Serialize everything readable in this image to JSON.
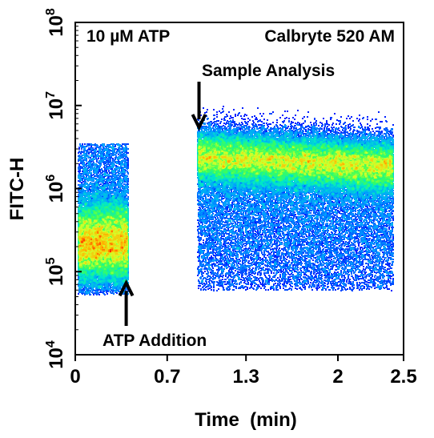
{
  "chart_data": {
    "type": "heatmap",
    "subtype": "density scatter (flow cytometry kinetic plot)",
    "title": "",
    "xlabel": "Time  (min)",
    "ylabel": "FITC-H",
    "x_ticks": [
      {
        "value": 0,
        "label": "0"
      },
      {
        "value": 0.7,
        "label": "0.7"
      },
      {
        "value": 1.3,
        "label": "1.3"
      },
      {
        "value": 2,
        "label": "2"
      },
      {
        "value": 2.5,
        "label": "2.5"
      }
    ],
    "y_scale": "log",
    "y_ticks": [
      {
        "value": 10000,
        "base": "10",
        "exp": "4"
      },
      {
        "value": 100000,
        "base": "10",
        "exp": "5"
      },
      {
        "value": 1000000,
        "base": "10",
        "exp": "6"
      },
      {
        "value": 10000000,
        "base": "10",
        "exp": "7"
      },
      {
        "value": 100000000,
        "base": "10",
        "exp": "8"
      }
    ],
    "xlim": [
      0,
      2.5
    ],
    "ylim": [
      10000,
      100000000
    ],
    "grid": false,
    "annotations": {
      "top_left": "10 µM ATP",
      "top_right": "Calbryte 520 AM",
      "arrow_down": {
        "text": "Sample Analysis",
        "time": 0.93,
        "tip_value": 5000000
      },
      "arrow_up": {
        "text": "ATP Addition",
        "time": 0.4,
        "tip_value": 80000
      }
    },
    "series": [
      {
        "segment": "baseline",
        "time_range": [
          0.02,
          0.4
        ],
        "median_fitc_h": 220000,
        "fitc_h_range": [
          60000,
          3500000
        ]
      },
      {
        "segment": "post-ATP",
        "time_range": [
          0.93,
          2.42
        ],
        "median_fitc_h": 2500000,
        "fitc_h_range": [
          60000,
          10000000
        ]
      }
    ],
    "color_scale": [
      "#0000ff",
      "#00a0ff",
      "#00e6c8",
      "#3cff5a",
      "#d7ff28",
      "#ffb400",
      "#ff2800"
    ]
  }
}
